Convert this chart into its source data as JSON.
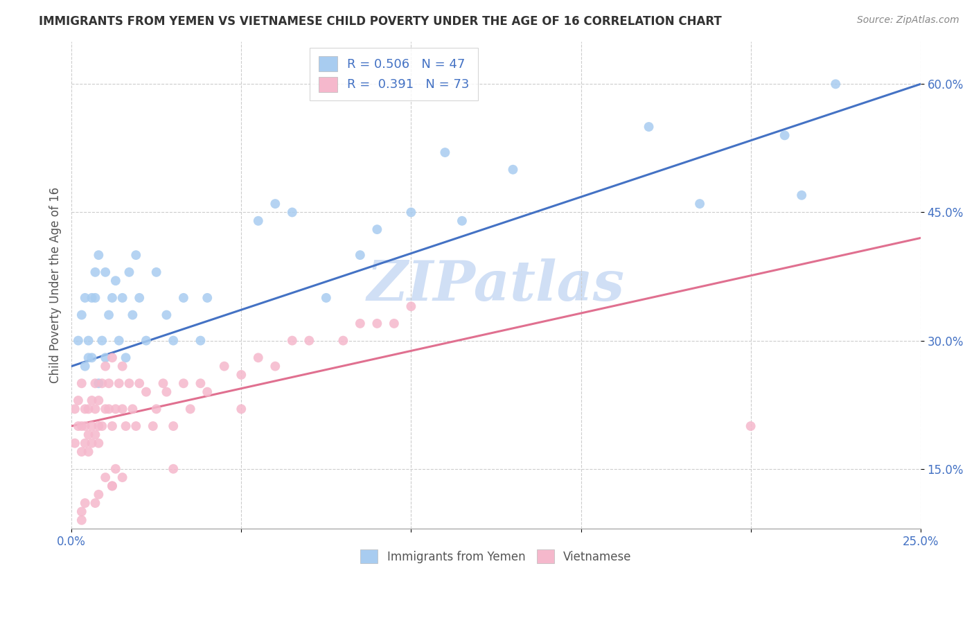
{
  "title": "IMMIGRANTS FROM YEMEN VS VIETNAMESE CHILD POVERTY UNDER THE AGE OF 16 CORRELATION CHART",
  "source": "Source: ZipAtlas.com",
  "ylabel": "Child Poverty Under the Age of 16",
  "xlim": [
    0.0,
    0.25
  ],
  "ylim": [
    0.08,
    0.65
  ],
  "xticks": [
    0.0,
    0.05,
    0.1,
    0.15,
    0.2,
    0.25
  ],
  "ytick_labels": [
    "15.0%",
    "30.0%",
    "45.0%",
    "60.0%"
  ],
  "ytick_values": [
    0.15,
    0.3,
    0.45,
    0.6
  ],
  "blue_R": 0.506,
  "blue_N": 47,
  "pink_R": 0.391,
  "pink_N": 73,
  "blue_color": "#A8CCF0",
  "pink_color": "#F5B8CC",
  "blue_line_color": "#4472C4",
  "pink_line_color": "#E07090",
  "watermark_color": "#D0DFF5",
  "background_color": "#FFFFFF",
  "grid_color": "#CCCCCC",
  "title_color": "#333333",
  "axis_label_color": "#4472C4",
  "legend_label_color": "#4472C4",
  "blue_line_y0": 0.27,
  "blue_line_y1": 0.6,
  "pink_line_y0": 0.2,
  "pink_line_y1": 0.42,
  "blue_scatter_x": [
    0.002,
    0.003,
    0.004,
    0.004,
    0.005,
    0.005,
    0.006,
    0.006,
    0.007,
    0.007,
    0.008,
    0.008,
    0.009,
    0.01,
    0.01,
    0.011,
    0.012,
    0.013,
    0.014,
    0.015,
    0.016,
    0.017,
    0.018,
    0.019,
    0.02,
    0.022,
    0.025,
    0.028,
    0.03,
    0.033,
    0.038,
    0.04,
    0.055,
    0.06,
    0.065,
    0.075,
    0.085,
    0.09,
    0.1,
    0.115,
    0.13,
    0.17,
    0.185,
    0.21,
    0.215,
    0.225,
    0.11
  ],
  "blue_scatter_y": [
    0.3,
    0.33,
    0.27,
    0.35,
    0.3,
    0.28,
    0.35,
    0.28,
    0.38,
    0.35,
    0.25,
    0.4,
    0.3,
    0.28,
    0.38,
    0.33,
    0.35,
    0.37,
    0.3,
    0.35,
    0.28,
    0.38,
    0.33,
    0.4,
    0.35,
    0.3,
    0.38,
    0.33,
    0.3,
    0.35,
    0.3,
    0.35,
    0.44,
    0.46,
    0.45,
    0.35,
    0.4,
    0.43,
    0.45,
    0.44,
    0.5,
    0.55,
    0.46,
    0.54,
    0.47,
    0.6,
    0.52
  ],
  "pink_scatter_x": [
    0.001,
    0.001,
    0.002,
    0.002,
    0.003,
    0.003,
    0.003,
    0.004,
    0.004,
    0.004,
    0.005,
    0.005,
    0.005,
    0.006,
    0.006,
    0.006,
    0.007,
    0.007,
    0.007,
    0.008,
    0.008,
    0.008,
    0.009,
    0.009,
    0.01,
    0.01,
    0.011,
    0.011,
    0.012,
    0.012,
    0.013,
    0.014,
    0.015,
    0.015,
    0.016,
    0.017,
    0.018,
    0.019,
    0.02,
    0.022,
    0.024,
    0.025,
    0.027,
    0.028,
    0.03,
    0.033,
    0.035,
    0.038,
    0.04,
    0.045,
    0.05,
    0.055,
    0.06,
    0.065,
    0.07,
    0.08,
    0.085,
    0.09,
    0.095,
    0.1,
    0.2,
    0.05,
    0.03,
    0.012,
    0.008,
    0.007,
    0.01,
    0.012,
    0.013,
    0.015,
    0.003,
    0.003,
    0.004
  ],
  "pink_scatter_y": [
    0.22,
    0.18,
    0.2,
    0.23,
    0.17,
    0.2,
    0.25,
    0.18,
    0.22,
    0.2,
    0.17,
    0.22,
    0.19,
    0.2,
    0.23,
    0.18,
    0.22,
    0.19,
    0.25,
    0.2,
    0.23,
    0.18,
    0.25,
    0.2,
    0.22,
    0.27,
    0.22,
    0.25,
    0.2,
    0.28,
    0.22,
    0.25,
    0.22,
    0.27,
    0.2,
    0.25,
    0.22,
    0.2,
    0.25,
    0.24,
    0.2,
    0.22,
    0.25,
    0.24,
    0.2,
    0.25,
    0.22,
    0.25,
    0.24,
    0.27,
    0.26,
    0.28,
    0.27,
    0.3,
    0.3,
    0.3,
    0.32,
    0.32,
    0.32,
    0.34,
    0.2,
    0.22,
    0.15,
    0.13,
    0.12,
    0.11,
    0.14,
    0.13,
    0.15,
    0.14,
    0.1,
    0.09,
    0.11
  ]
}
